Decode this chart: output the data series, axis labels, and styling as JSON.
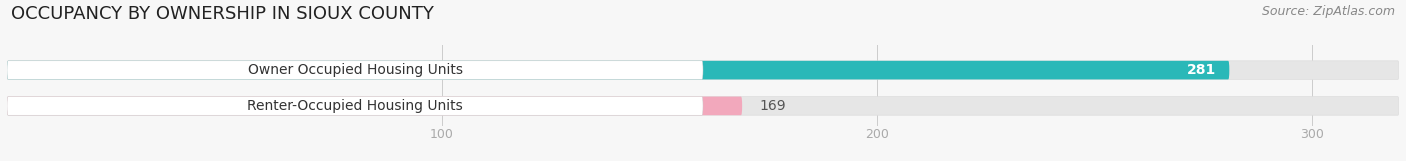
{
  "title": "OCCUPANCY BY OWNERSHIP IN SIOUX COUNTY",
  "source": "Source: ZipAtlas.com",
  "categories": [
    "Owner Occupied Housing Units",
    "Renter-Occupied Housing Units"
  ],
  "values": [
    281,
    169
  ],
  "bar_colors": [
    "#2ab8b8",
    "#f2a8bc"
  ],
  "xlim_max": 320,
  "xticks": [
    100,
    200,
    300
  ],
  "bar_height": 0.52,
  "background_color": "#f7f7f7",
  "bar_bg_color": "#e6e6e6",
  "label_bg_color": "#ffffff",
  "title_fontsize": 13,
  "label_fontsize": 10,
  "value_fontsize": 10,
  "source_fontsize": 9,
  "label_text_color": "#333333",
  "value_color_inside": "#ffffff",
  "value_color_outside": "#555555",
  "tick_color": "#aaaaaa",
  "grid_color": "#cccccc"
}
